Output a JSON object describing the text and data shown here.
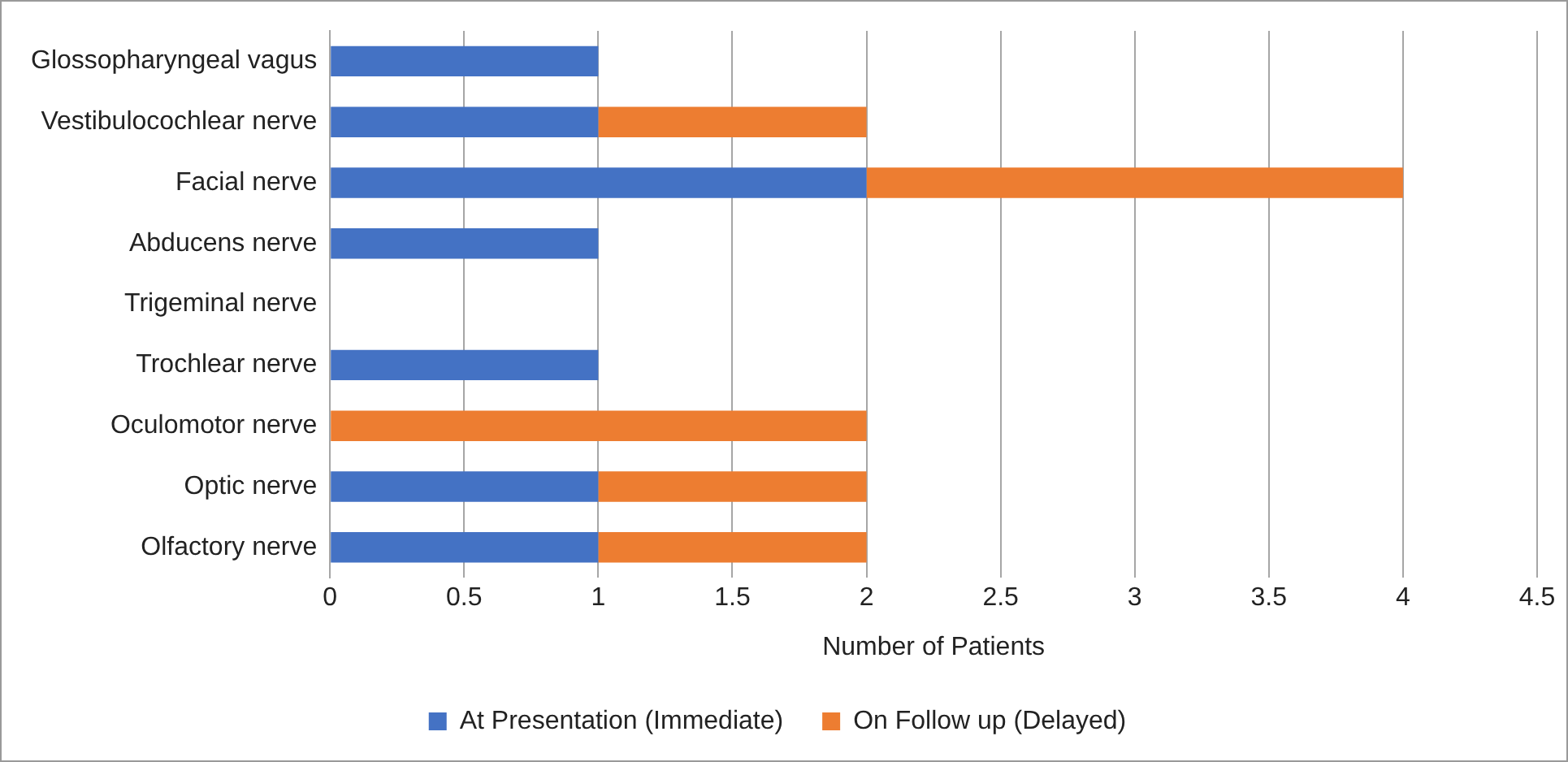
{
  "chart_data": {
    "type": "bar",
    "orientation": "horizontal",
    "stacked": true,
    "xlabel": "Number of Patients",
    "categories": [
      "Glossopharyngeal vagus",
      "Vestibulocochlear nerve",
      "Facial nerve",
      "Abducens nerve",
      "Trigeminal nerve",
      "Trochlear nerve",
      "Oculomotor nerve",
      "Optic nerve",
      "Olfactory nerve"
    ],
    "series": [
      {
        "name": "At Presentation (Immediate)",
        "color": "#4472c4",
        "values": [
          1,
          1,
          2,
          1,
          0,
          1,
          0,
          1,
          1
        ]
      },
      {
        "name": "On Follow up (Delayed)",
        "color": "#ed7d31",
        "values": [
          0,
          1,
          2,
          0,
          0,
          0,
          2,
          1,
          1
        ]
      }
    ],
    "xlim": [
      0,
      4.5
    ],
    "xticks": [
      0,
      0.5,
      1,
      1.5,
      2,
      2.5,
      3,
      3.5,
      4,
      4.5
    ],
    "grid": "x",
    "legend": "bottom"
  }
}
